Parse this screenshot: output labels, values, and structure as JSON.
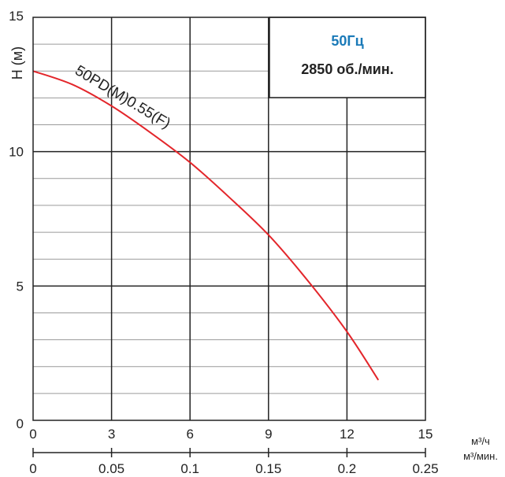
{
  "chart_data": {
    "type": "line",
    "title": "",
    "ylabel": "H (м)",
    "ylim": [
      0,
      15
    ],
    "yticks": [
      "0",
      "5",
      "10",
      "15"
    ],
    "xaxes": [
      {
        "unit": "м³/ч",
        "xlim": [
          0,
          15
        ],
        "ticks": [
          "0",
          "3",
          "6",
          "9",
          "12",
          "15"
        ]
      },
      {
        "unit": "м³/мин.",
        "xlim": [
          0,
          0.25
        ],
        "ticks": [
          "0",
          "0.05",
          "0.1",
          "0.15",
          "0.2",
          "0.25"
        ]
      }
    ],
    "grid": true,
    "info_box": {
      "frequency": "50Гц",
      "speed": "2850 об./мин."
    },
    "series": [
      {
        "name": "50PD(M)0.55(F)",
        "color": "#e3262b",
        "x": [
          0,
          1.5,
          3,
          4.5,
          6,
          7.5,
          9,
          10.5,
          12,
          13.2
        ],
        "y": [
          13.0,
          12.5,
          11.7,
          10.7,
          9.6,
          8.3,
          6.9,
          5.2,
          3.3,
          1.5
        ]
      }
    ]
  }
}
